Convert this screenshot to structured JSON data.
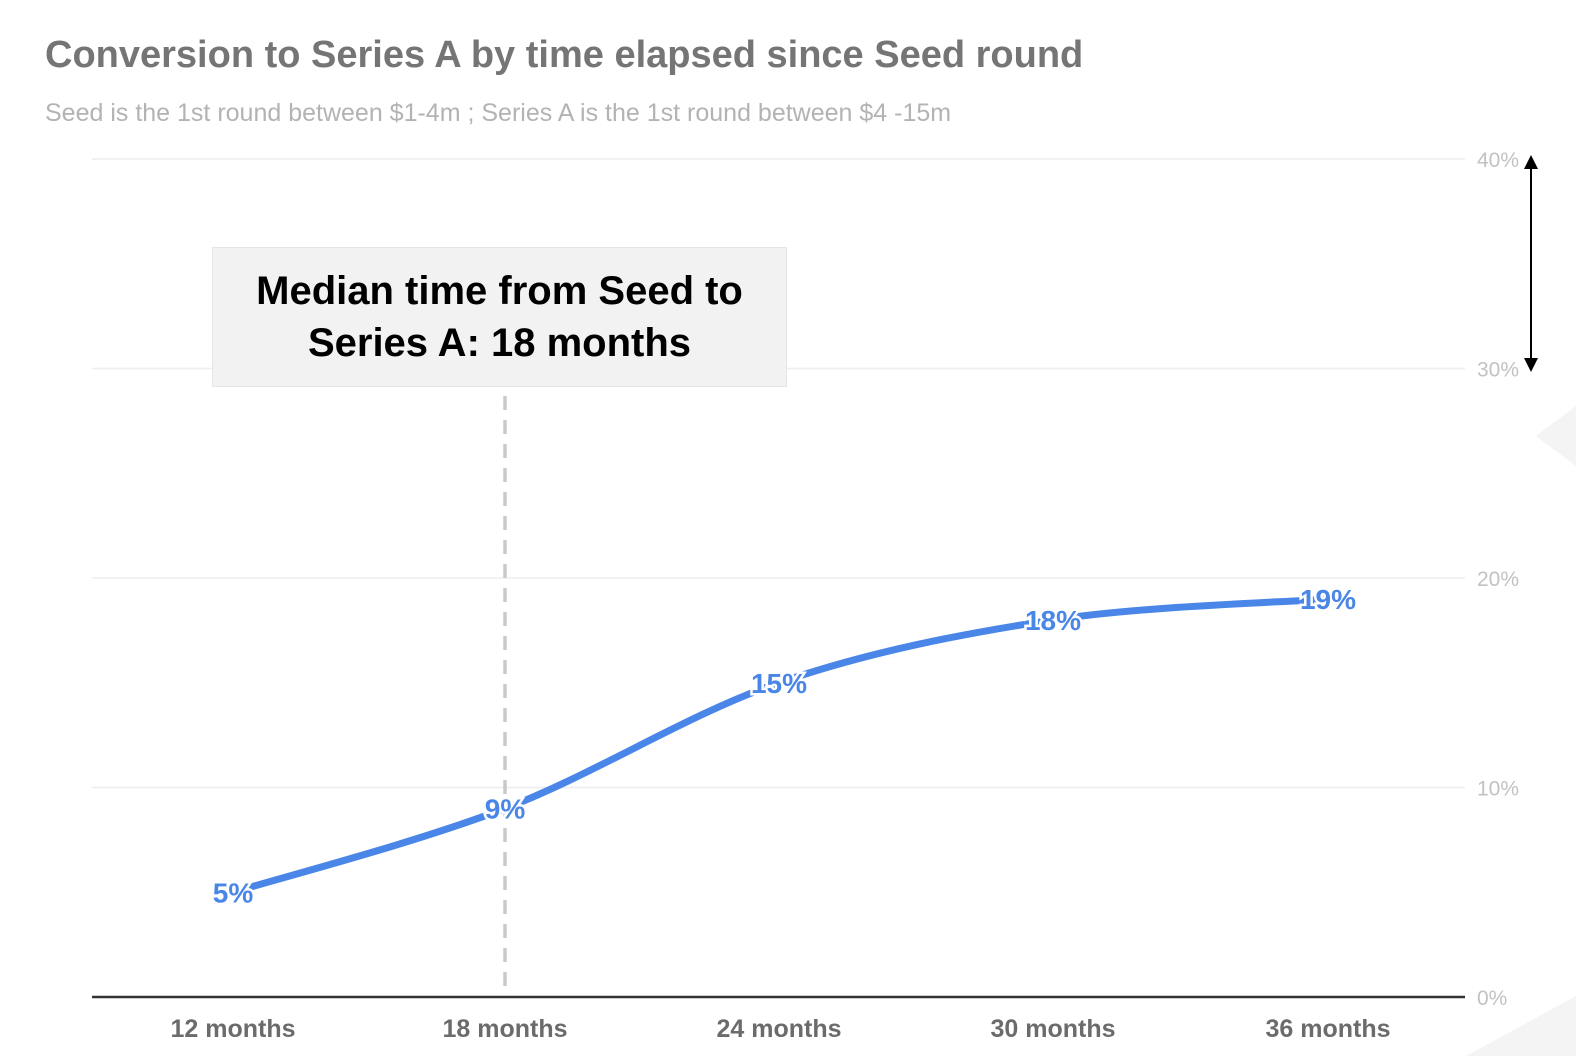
{
  "chart_data": {
    "type": "line",
    "title": "Conversion to Series A by time elapsed since Seed round",
    "subtitle": "Seed is the 1st round between $1-4m ; Series A is the 1st round between $4 -15m",
    "categories": [
      "12 months",
      "18 months",
      "24 months",
      "30 months",
      "36 months"
    ],
    "series": [
      {
        "values": [
          5,
          9,
          15,
          18,
          19
        ],
        "labels": [
          "5%",
          "9%",
          "15%",
          "18%",
          "19%"
        ],
        "color": "#4a86e8"
      }
    ],
    "ylim": [
      0,
      40
    ],
    "yticks": [
      0,
      10,
      20,
      30,
      40
    ],
    "ytick_labels": [
      "0%",
      "10%",
      "20%",
      "30%",
      "40%"
    ],
    "y_axis_side": "right",
    "grid": true,
    "annotation": {
      "text": "Median time from Seed to Series A: 18 months",
      "marker_category": "18 months"
    }
  },
  "colors": {
    "title": "#757575",
    "subtitle": "#b3b3b3",
    "series": "#4a86e8",
    "baseline": "#333333",
    "median_line": "#c9c9c9"
  }
}
